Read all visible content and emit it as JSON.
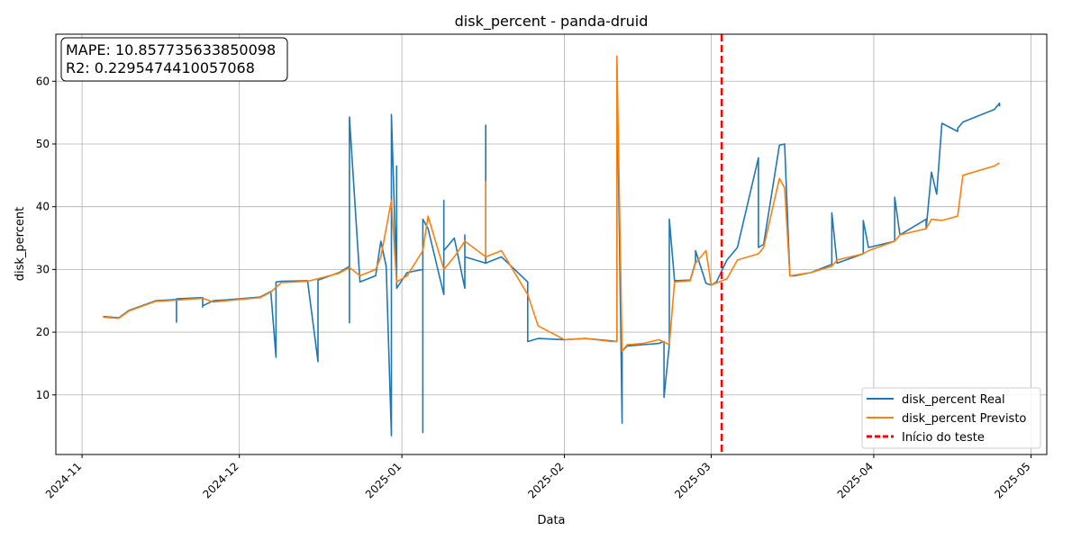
{
  "chart_data": {
    "type": "line",
    "title": "disk_percent - panda-druid",
    "xlabel": "Data",
    "ylabel": "disk_percent",
    "xlim": [
      "2024-10-27",
      "2025-05-04"
    ],
    "ylim": [
      0.5,
      67.5
    ],
    "x_ticks": [
      "2024-11-01",
      "2024-12-01",
      "2025-01-01",
      "2025-02-01",
      "2025-03-01",
      "2025-04-01",
      "2025-05-01"
    ],
    "x_tick_labels": [
      "2024-11",
      "2024-12",
      "2025-01",
      "2025-02",
      "2025-03",
      "2025-04",
      "2025-05"
    ],
    "y_ticks": [
      10,
      20,
      30,
      40,
      50,
      60
    ],
    "grid": true,
    "legend_position": "lower-right",
    "annotation": {
      "lines": [
        "MAPE: 10.857735633850098",
        "R2: 0.2295474410057068"
      ],
      "position": "top-left"
    },
    "vline": {
      "name": "Início do teste",
      "x": "2025-03-03",
      "color": "#ff0000",
      "style": "dashed"
    },
    "series": [
      {
        "name": "disk_percent Real",
        "color": "#1f77b4",
        "x": [
          "2024-11-05",
          "2024-11-08",
          "2024-11-10",
          "2024-11-15",
          "2024-11-19",
          "2024-11-19",
          "2024-11-19",
          "2024-11-24",
          "2024-11-24",
          "2024-11-24",
          "2024-11-26",
          "2024-12-01",
          "2024-12-05",
          "2024-12-07",
          "2024-12-08",
          "2024-12-08",
          "2024-12-08",
          "2024-12-09",
          "2024-12-14",
          "2024-12-16",
          "2024-12-16",
          "2024-12-16",
          "2024-12-20",
          "2024-12-22",
          "2024-12-22",
          "2024-12-22",
          "2024-12-24",
          "2024-12-27",
          "2024-12-28",
          "2024-12-29",
          "2024-12-30",
          "2024-12-30",
          "2024-12-30",
          "2024-12-31",
          "2024-12-31",
          "2024-12-31",
          "2025-01-02",
          "2025-01-05",
          "2025-01-05",
          "2025-01-05",
          "2025-01-06",
          "2025-01-09",
          "2025-01-09",
          "2025-01-09",
          "2025-01-11",
          "2025-01-13",
          "2025-01-13",
          "2025-01-13",
          "2025-01-17",
          "2025-01-17",
          "2025-01-17",
          "2025-01-20",
          "2025-01-25",
          "2025-01-25",
          "2025-01-25",
          "2025-01-27",
          "2025-02-01",
          "2025-02-05",
          "2025-02-10",
          "2025-02-11",
          "2025-02-11",
          "2025-02-12",
          "2025-02-12",
          "2025-02-13",
          "2025-02-16",
          "2025-02-19",
          "2025-02-20",
          "2025-02-20",
          "2025-02-21",
          "2025-02-21",
          "2025-02-21",
          "2025-02-22",
          "2025-02-25",
          "2025-02-26",
          "2025-02-26",
          "2025-02-28",
          "2025-03-01",
          "2025-03-02",
          "2025-03-04",
          "2025-03-06",
          "2025-03-10",
          "2025-03-10",
          "2025-03-11",
          "2025-03-14",
          "2025-03-15",
          "2025-03-16",
          "2025-03-17",
          "2025-03-20",
          "2025-03-24",
          "2025-03-24",
          "2025-03-25",
          "2025-03-30",
          "2025-03-30",
          "2025-03-31",
          "2025-04-05",
          "2025-04-05",
          "2025-04-06",
          "2025-04-11",
          "2025-04-11",
          "2025-04-12",
          "2025-04-13",
          "2025-04-14",
          "2025-04-17",
          "2025-04-17",
          "2025-04-18",
          "2025-04-24",
          "2025-04-25",
          "2025-04-25"
        ],
        "y": [
          22.5,
          22.3,
          23.5,
          25.0,
          25.2,
          21.6,
          25.3,
          25.5,
          24.0,
          24.2,
          25.0,
          25.3,
          25.6,
          26.5,
          16.0,
          27.8,
          28.0,
          28.1,
          28.2,
          15.3,
          28.2,
          28.3,
          29.5,
          30.5,
          21.5,
          54.3,
          28.0,
          29.0,
          34.5,
          30.5,
          3.5,
          31.5,
          54.7,
          28.0,
          46.5,
          27.0,
          29.5,
          30.0,
          4.0,
          38.0,
          36.5,
          26.0,
          41.0,
          33.0,
          35.0,
          27.0,
          35.5,
          32.0,
          31.0,
          53.0,
          31.0,
          32.0,
          28.0,
          26.0,
          18.5,
          19.0,
          18.8,
          19.0,
          18.6,
          18.5,
          63.0,
          5.5,
          17.0,
          17.8,
          18.0,
          18.2,
          18.5,
          9.6,
          18.0,
          28.0,
          38.0,
          28.2,
          28.3,
          31.2,
          33.0,
          27.8,
          27.5,
          28.0,
          31.5,
          33.5,
          47.8,
          33.5,
          34.0,
          49.8,
          50.0,
          29.0,
          29.0,
          29.5,
          30.8,
          39.0,
          31.0,
          32.5,
          37.8,
          33.5,
          34.5,
          41.5,
          35.5,
          38.0,
          36.5,
          45.5,
          42.0,
          53.3,
          52.0,
          52.5,
          53.5,
          55.5,
          56.5,
          56.0
        ]
      },
      {
        "name": "disk_percent Previsto",
        "color": "#ff7f0e",
        "x": [
          "2024-11-05",
          "2024-11-08",
          "2024-11-10",
          "2024-11-15",
          "2024-11-19",
          "2024-11-24",
          "2024-11-26",
          "2024-12-01",
          "2024-12-05",
          "2024-12-07",
          "2024-12-09",
          "2024-12-14",
          "2024-12-20",
          "2024-12-22",
          "2024-12-24",
          "2024-12-27",
          "2024-12-28",
          "2024-12-30",
          "2024-12-31",
          "2025-01-02",
          "2025-01-05",
          "2025-01-06",
          "2025-01-09",
          "2025-01-11",
          "2025-01-13",
          "2025-01-17",
          "2025-01-17",
          "2025-01-17",
          "2025-01-20",
          "2025-01-25",
          "2025-01-27",
          "2025-02-01",
          "2025-02-05",
          "2025-02-10",
          "2025-02-11",
          "2025-02-11",
          "2025-02-12",
          "2025-02-13",
          "2025-02-16",
          "2025-02-19",
          "2025-02-21",
          "2025-02-22",
          "2025-02-25",
          "2025-02-26",
          "2025-02-28",
          "2025-03-01",
          "2025-03-04",
          "2025-03-06",
          "2025-03-10",
          "2025-03-11",
          "2025-03-14",
          "2025-03-15",
          "2025-03-16",
          "2025-03-20",
          "2025-03-24",
          "2025-03-25",
          "2025-03-30",
          "2025-03-31",
          "2025-04-05",
          "2025-04-06",
          "2025-04-11",
          "2025-04-12",
          "2025-04-14",
          "2025-04-17",
          "2025-04-18",
          "2025-04-24",
          "2025-04-25"
        ],
        "y": [
          22.4,
          22.2,
          23.4,
          24.9,
          25.1,
          25.4,
          24.8,
          25.2,
          25.5,
          26.4,
          27.9,
          28.1,
          29.4,
          30.3,
          29.0,
          30.0,
          32.0,
          41.0,
          28.0,
          29.0,
          33.0,
          38.5,
          30.0,
          32.0,
          34.5,
          32.0,
          44.0,
          32.0,
          33.0,
          26.0,
          21.0,
          18.8,
          19.0,
          18.5,
          18.5,
          64.0,
          17.0,
          18.0,
          18.2,
          18.8,
          18.0,
          28.0,
          28.2,
          31.0,
          33.0,
          27.5,
          28.5,
          31.5,
          32.5,
          33.5,
          44.5,
          43.0,
          29.0,
          29.5,
          30.5,
          31.5,
          32.5,
          33.0,
          34.5,
          35.5,
          36.5,
          38.0,
          37.8,
          38.5,
          45.0,
          46.5,
          47.0
        ]
      }
    ]
  }
}
